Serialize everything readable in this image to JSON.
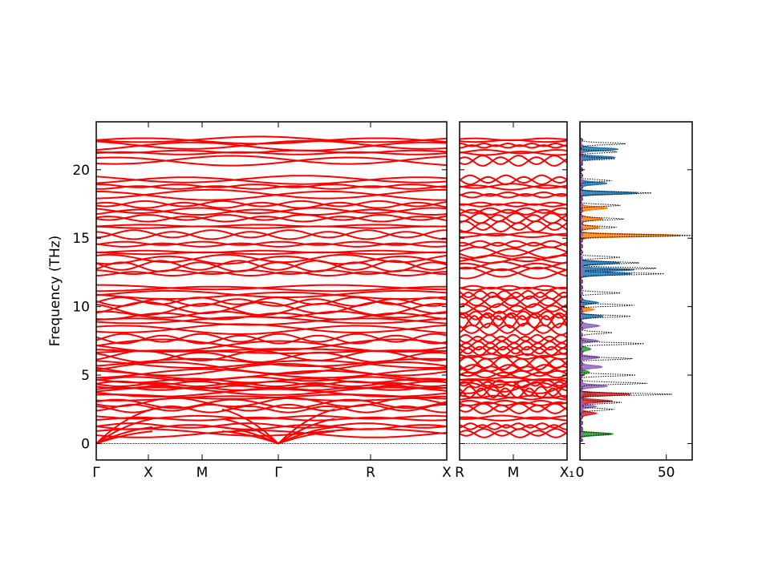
{
  "chart_data": [
    {
      "panel": "band-structure-main",
      "type": "line",
      "ylabel": "Frequency (THz)",
      "ylim": [
        -1.2,
        23.5
      ],
      "yticks": [
        0,
        5,
        10,
        15,
        20
      ],
      "xticks": [
        "Γ",
        "X",
        "M",
        "Γ",
        "R",
        "X"
      ],
      "band_color": "#ff0000",
      "zero_line_color": "#0000ff",
      "band_levels_thz": [
        0.7,
        1.2,
        1.8,
        2.5,
        2.9,
        3.3,
        3.7,
        4.0,
        4.3,
        4.6,
        5.0,
        5.4,
        5.8,
        6.3,
        6.7,
        7.1,
        7.6,
        8.3,
        8.9,
        9.3,
        9.8,
        10.3,
        10.8,
        11.3,
        12.4,
        12.9,
        13.4,
        13.9,
        14.5,
        15.2,
        15.8,
        16.4,
        16.9,
        17.4,
        18.1,
        18.7,
        19.2,
        20.6,
        21.2,
        21.7,
        22.1
      ]
    },
    {
      "panel": "band-structure-second",
      "type": "line",
      "xticks": [
        "R",
        "M",
        "X₁"
      ],
      "band_color": "#ff0000",
      "zero_line_color": "#0000ff"
    },
    {
      "panel": "density-of-states",
      "type": "area",
      "xticks": [
        "0",
        "50"
      ],
      "xlim": [
        0,
        65
      ],
      "series": [
        {
          "color": "#1f77b4",
          "peaks": [
            [
              21.5,
              22
            ],
            [
              20.9,
              19
            ],
            [
              19.0,
              15
            ],
            [
              18.3,
              32
            ],
            [
              13.2,
              22
            ],
            [
              12.7,
              30
            ],
            [
              12.4,
              29
            ],
            [
              10.3,
              10
            ],
            [
              9.3,
              12
            ]
          ]
        },
        {
          "color": "#ff7f0e",
          "peaks": [
            [
              17.2,
              16
            ],
            [
              16.4,
              13
            ],
            [
              15.8,
              10
            ],
            [
              15.2,
              57
            ],
            [
              9.8,
              7
            ]
          ]
        },
        {
          "color": "#2ca02c",
          "peaks": [
            [
              0.7,
              18
            ],
            [
              3.6,
              8
            ],
            [
              6.9,
              6
            ],
            [
              5.2,
              5
            ]
          ]
        },
        {
          "color": "#d62728",
          "peaks": [
            [
              3.6,
              28
            ],
            [
              3.1,
              18
            ],
            [
              2.2,
              9
            ]
          ]
        },
        {
          "color": "#9467bd",
          "peaks": [
            [
              4.2,
              15
            ],
            [
              5.6,
              13
            ],
            [
              6.3,
              10
            ],
            [
              7.5,
              9
            ],
            [
              8.6,
              11
            ],
            [
              2.7,
              8
            ]
          ]
        }
      ],
      "total_peaks": [
        [
          21.9,
          26
        ],
        [
          21.3,
          20
        ],
        [
          20.8,
          19
        ],
        [
          19.2,
          17
        ],
        [
          18.3,
          40
        ],
        [
          17.4,
          22
        ],
        [
          16.4,
          25
        ],
        [
          15.8,
          20
        ],
        [
          15.2,
          65
        ],
        [
          13.6,
          22
        ],
        [
          13.2,
          33
        ],
        [
          12.8,
          43
        ],
        [
          12.4,
          48
        ],
        [
          11.0,
          22
        ],
        [
          10.1,
          30
        ],
        [
          9.3,
          28
        ],
        [
          8.1,
          18
        ],
        [
          7.3,
          37
        ],
        [
          6.2,
          29
        ],
        [
          5.0,
          31
        ],
        [
          4.4,
          38
        ],
        [
          3.6,
          52
        ],
        [
          3.0,
          24
        ],
        [
          2.5,
          19
        ],
        [
          0.7,
          17
        ]
      ],
      "total_color": "#000000"
    }
  ]
}
